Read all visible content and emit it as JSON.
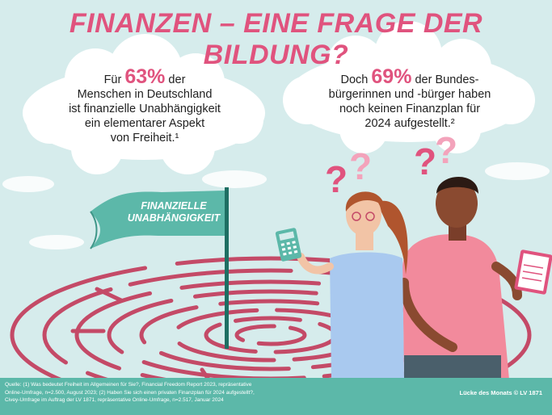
{
  "title": "FINANZEN – EINE FRAGE DER BILDUNG?",
  "left_bubble": {
    "prefix": "Für ",
    "percent": "63%",
    "after_percent": " der",
    "lines": [
      "Menschen in Deutschland",
      "ist finanzielle Unabhängigkeit",
      "ein elementarer Aspekt",
      "von Freiheit.¹"
    ]
  },
  "right_bubble": {
    "prefix": "Doch ",
    "percent": "69%",
    "after_percent": " der Bundes-",
    "lines": [
      "bürgerinnen und -bürger haben",
      "noch keinen Finanzplan für",
      "2024 aufgestellt.²"
    ]
  },
  "flag": {
    "line1": "FINANZIELLE",
    "line2": "UNABHÄNGIGKEIT"
  },
  "footer": {
    "sources_line1": "Quelle: (1) Was bedeutet Freiheit im Allgemeinen für Sie?, Financial Freedom Report 2023, repräsentative",
    "sources_line2": "Online-Umfrage, n=2.500, August 2023; (2) Haben Sie sich einen privaten Finanzplan für 2024 aufgestellt?,",
    "sources_line3": "Civey-Umfrage im Auftrag der LV 1871, repräsentative Online-Umfrage, n=2.517, Januar 2024",
    "credit": "Lücke des Monats © LV 1871"
  },
  "colors": {
    "accent": "#e0537e",
    "background": "#d6ecec",
    "footer": "#5cb8a9",
    "flag": "#5cb8a9",
    "maze": "#c44a67"
  }
}
